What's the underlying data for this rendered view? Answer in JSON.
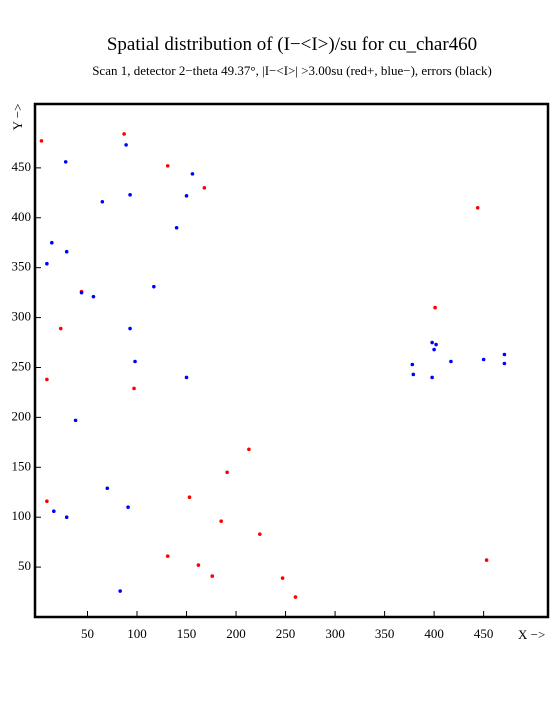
{
  "chart_data": {
    "type": "scatter",
    "title": "Spatial distribution of (I−<I>)/su for cu_char460",
    "subtitle": "Scan  1, detector 2−theta  49.37°, |I−<I>| >3.00su (red+, blue−), errors (black)",
    "x_label": "X −>",
    "y_label": "Y −>",
    "xlim": [
      -3,
      515
    ],
    "ylim": [
      0,
      514
    ],
    "xticks": [
      50,
      100,
      150,
      200,
      250,
      300,
      350,
      400,
      450
    ],
    "yticks": [
      50,
      100,
      150,
      200,
      250,
      300,
      350,
      400,
      450
    ],
    "series": [
      {
        "color": "#ff0000",
        "x": [
          3.5,
          87,
          131,
          168,
          444,
          401,
          44,
          23,
          9,
          97,
          213,
          191,
          153,
          9,
          185,
          224,
          131,
          162,
          176,
          247,
          260,
          453
        ],
        "y": [
          477,
          484,
          452,
          430,
          410,
          310,
          326,
          289,
          238,
          229,
          168,
          145,
          120,
          116,
          96,
          83,
          61,
          52,
          41,
          39,
          20,
          57
        ]
      },
      {
        "color": "#0000ff",
        "x": [
          28,
          89,
          156,
          93,
          150,
          65,
          140,
          14,
          29,
          9,
          117,
          44,
          56,
          93,
          98,
          150,
          38,
          70,
          91,
          16,
          29,
          83,
          398,
          402,
          400,
          378,
          417,
          450,
          471,
          471,
          379,
          398
        ],
        "y": [
          456,
          473,
          444,
          423,
          422,
          416,
          390,
          375,
          366,
          354,
          331,
          325,
          321,
          289,
          256,
          240,
          197,
          129,
          110,
          106,
          100,
          26,
          275,
          273,
          268,
          253,
          256,
          258,
          263,
          254,
          243,
          240
        ]
      }
    ]
  }
}
